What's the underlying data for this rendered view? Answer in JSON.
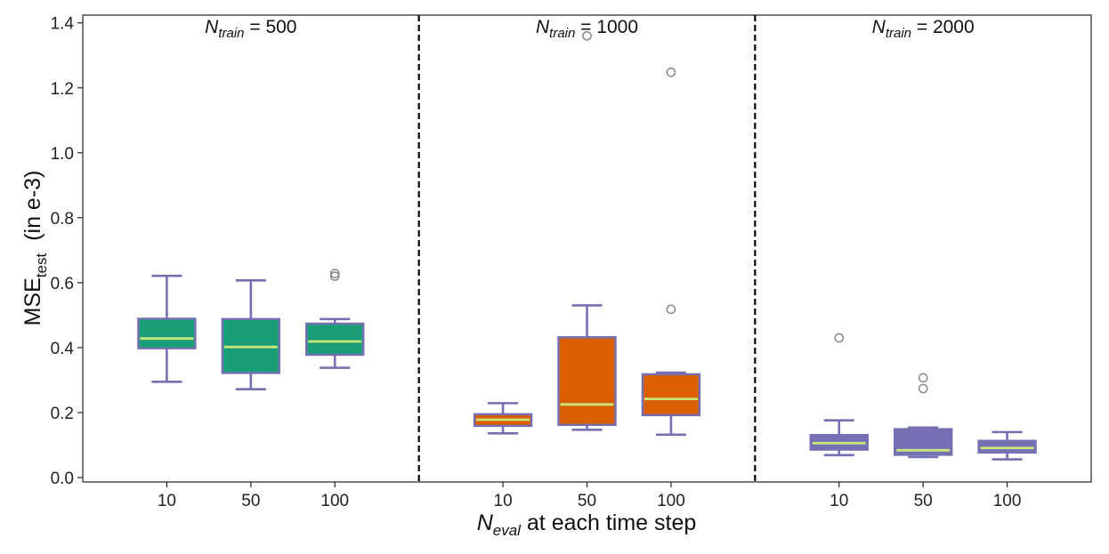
{
  "chart_data": {
    "type": "boxplot",
    "ylabel": {
      "main": "MSE",
      "sub": "test",
      "suffix": "(in e-3)"
    },
    "xlabel": {
      "var": "N",
      "sub": "eval",
      "suffix": " at each time step"
    },
    "ylim": [
      0.0,
      1.42
    ],
    "yticks": [
      0.0,
      0.2,
      0.4,
      0.6,
      0.8,
      1.0,
      1.2,
      1.4
    ],
    "ytick_labels": [
      "0.0",
      "0.2",
      "0.4",
      "0.6",
      "0.8",
      "1.0",
      "1.2",
      "1.4"
    ],
    "colors": {
      "box_edge": "#7570b3",
      "median": "#c8e67a",
      "outlier": "#888888",
      "separator": "#000000"
    },
    "groups": [
      {
        "title_var": "N",
        "title_sub": "train",
        "title_value": " = 500",
        "fill": "#1b9e77",
        "boxes": [
          {
            "label": "10",
            "whisker_low": 0.295,
            "q1": 0.398,
            "median": 0.428,
            "q3": 0.489,
            "whisker_high": 0.621,
            "outliers": []
          },
          {
            "label": "50",
            "whisker_low": 0.272,
            "q1": 0.322,
            "median": 0.402,
            "q3": 0.488,
            "whisker_high": 0.607,
            "outliers": []
          },
          {
            "label": "100",
            "whisker_low": 0.338,
            "q1": 0.378,
            "median": 0.419,
            "q3": 0.474,
            "whisker_high": 0.488,
            "outliers": [
              0.62,
              0.628
            ]
          }
        ]
      },
      {
        "title_var": "N",
        "title_sub": "train",
        "title_value": " = 1000",
        "fill": "#d95f02",
        "boxes": [
          {
            "label": "10",
            "whisker_low": 0.136,
            "q1": 0.159,
            "median": 0.178,
            "q3": 0.195,
            "whisker_high": 0.229,
            "outliers": []
          },
          {
            "label": "50",
            "whisker_low": 0.147,
            "q1": 0.162,
            "median": 0.225,
            "q3": 0.432,
            "whisker_high": 0.53,
            "outliers": [
              1.36
            ]
          },
          {
            "label": "100",
            "whisker_low": 0.132,
            "q1": 0.192,
            "median": 0.242,
            "q3": 0.318,
            "whisker_high": 0.323,
            "outliers": [
              0.518,
              1.248
            ]
          }
        ]
      },
      {
        "title_var": "N",
        "title_sub": "train",
        "title_value": " = 2000",
        "fill": "#7570b3",
        "boxes": [
          {
            "label": "10",
            "whisker_low": 0.069,
            "q1": 0.086,
            "median": 0.106,
            "q3": 0.131,
            "whisker_high": 0.176,
            "outliers": [
              0.43
            ]
          },
          {
            "label": "50",
            "whisker_low": 0.063,
            "q1": 0.07,
            "median": 0.084,
            "q3": 0.149,
            "whisker_high": 0.154,
            "outliers": [
              0.274,
              0.307
            ]
          },
          {
            "label": "100",
            "whisker_low": 0.056,
            "q1": 0.077,
            "median": 0.091,
            "q3": 0.113,
            "whisker_high": 0.14,
            "outliers": []
          }
        ]
      }
    ]
  }
}
